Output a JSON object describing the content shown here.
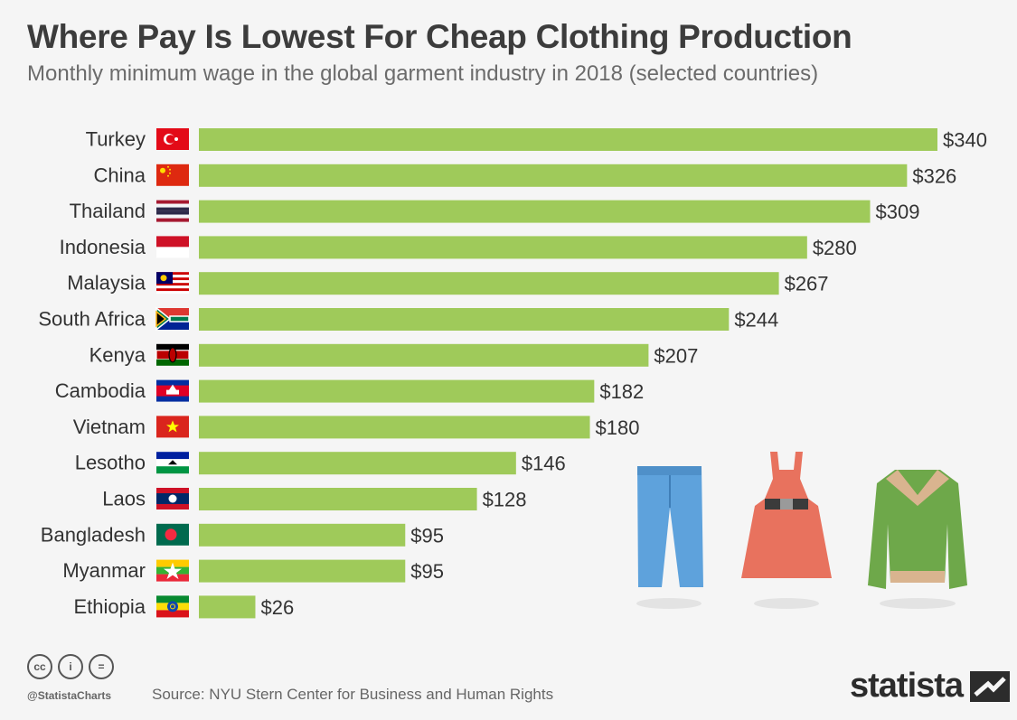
{
  "title": "Where Pay Is Lowest For Cheap Clothing Production",
  "subtitle": "Monthly minimum wage in the global garment industry in 2018 (selected countries)",
  "colors": {
    "bar": "#9fca5a",
    "background": "#f5f5f5",
    "label": "#333333"
  },
  "chart_data": {
    "type": "bar",
    "orientation": "horizontal",
    "title": "Where Pay Is Lowest For Cheap Clothing Production",
    "subtitle": "Monthly minimum wage in the global garment industry in 2018 (selected countries)",
    "categories": [
      "Turkey",
      "China",
      "Thailand",
      "Indonesia",
      "Malaysia",
      "South Africa",
      "Kenya",
      "Cambodia",
      "Vietnam",
      "Lesotho",
      "Laos",
      "Bangladesh",
      "Myanmar",
      "Ethiopia"
    ],
    "values": [
      340,
      326,
      309,
      280,
      267,
      244,
      207,
      182,
      180,
      146,
      128,
      95,
      95,
      26
    ],
    "value_labels": [
      "$340",
      "$326",
      "$309",
      "$280",
      "$267",
      "$244",
      "$207",
      "$182",
      "$180",
      "$146",
      "$128",
      "$95",
      "$95",
      "$26"
    ],
    "flags": [
      "turkey-flag",
      "china-flag",
      "thailand-flag",
      "indonesia-flag",
      "malaysia-flag",
      "south-africa-flag",
      "kenya-flag",
      "cambodia-flag",
      "vietnam-flag",
      "lesotho-flag",
      "laos-flag",
      "bangladesh-flag",
      "myanmar-flag",
      "ethiopia-flag"
    ],
    "xlabel": "",
    "ylabel": "",
    "xlim": [
      0,
      340
    ],
    "grid": false,
    "legend": "none"
  },
  "footer": {
    "license_icons": [
      "cc-icon",
      "attribution-icon",
      "no-derivatives-icon"
    ],
    "handle": "@StatistaCharts",
    "source": "Source: NYU Stern Center for Business and Human Rights",
    "brand": "statista"
  },
  "illustrations": [
    "jeans-icon",
    "dress-icon",
    "jacket-icon"
  ]
}
